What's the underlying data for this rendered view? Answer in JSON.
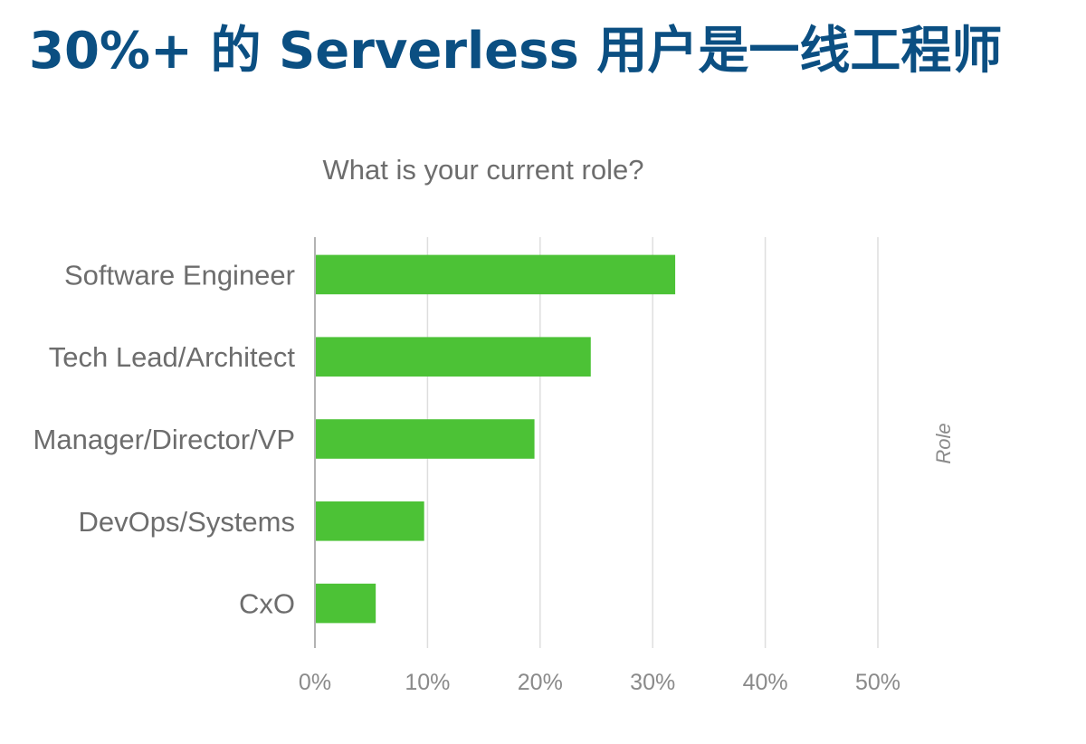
{
  "slide": {
    "title": "30%+ 的 Serverless 用户是一线工程师"
  },
  "chart_data": {
    "type": "bar",
    "orientation": "horizontal",
    "title": "What is your current role?",
    "categories": [
      "Software Engineer",
      "Tech Lead/Architect",
      "Manager/Director/VP",
      "DevOps/Systems",
      "CxO"
    ],
    "values": [
      32,
      24.5,
      19.5,
      9.7,
      5.4
    ],
    "xlim": [
      0,
      50
    ],
    "xticks": [
      "0%",
      "10%",
      "20%",
      "30%",
      "40%",
      "50%"
    ],
    "xlabel": "",
    "side_label": "Role",
    "grid": true,
    "bar_color": "#4cc236"
  }
}
